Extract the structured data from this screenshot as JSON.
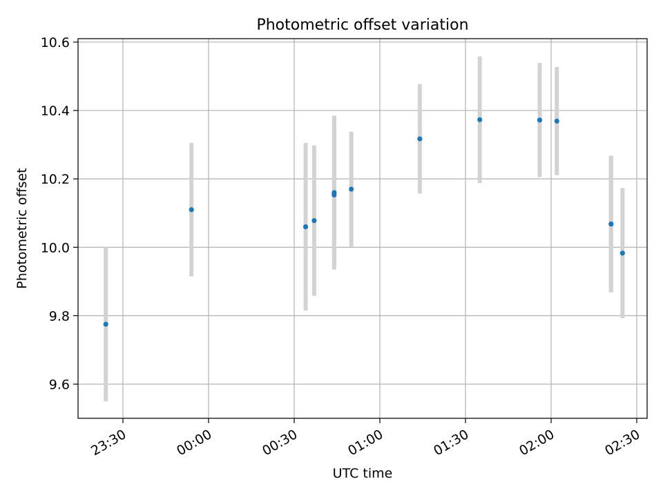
{
  "chart_data": {
    "type": "scatter",
    "title": "Photometric offset variation",
    "xlabel": "UTC time",
    "ylabel": "Photometric offset",
    "x_ticks": [
      "23:30",
      "00:00",
      "00:30",
      "01:00",
      "01:30",
      "02:00",
      "02:30"
    ],
    "x_tick_minutes": [
      -30,
      0,
      30,
      60,
      90,
      120,
      150
    ],
    "y_ticks": [
      "9.6",
      "9.8",
      "10.0",
      "10.2",
      "10.4",
      "10.6"
    ],
    "y_tick_values": [
      9.6,
      9.8,
      10.0,
      10.2,
      10.4,
      10.6
    ],
    "ylim": [
      9.5,
      10.61
    ],
    "grid": true,
    "marker_color": "#1f77b4",
    "errorbar_color": "#d3d3d3",
    "points": [
      {
        "time": "23:24",
        "y": 9.775,
        "err": 0.225
      },
      {
        "time": "23:54",
        "y": 10.11,
        "err": 0.195
      },
      {
        "time": "00:34",
        "y": 10.06,
        "err": 0.245
      },
      {
        "time": "00:37",
        "y": 10.078,
        "err": 0.22
      },
      {
        "time": "00:44",
        "y": 10.16,
        "err": 0.225
      },
      {
        "time": "00:44",
        "y": 10.153,
        "err": 0.21
      },
      {
        "time": "00:50",
        "y": 10.17,
        "err": 0.168
      },
      {
        "time": "01:14",
        "y": 10.317,
        "err": 0.16
      },
      {
        "time": "01:35",
        "y": 10.373,
        "err": 0.185
      },
      {
        "time": "01:56",
        "y": 10.372,
        "err": 0.167
      },
      {
        "time": "02:02",
        "y": 10.369,
        "err": 0.158
      },
      {
        "time": "02:21",
        "y": 10.068,
        "err": 0.198
      },
      {
        "time": "02:21",
        "y": 10.068,
        "err": 0.2
      },
      {
        "time": "02:25",
        "y": 9.983,
        "err": 0.19
      }
    ]
  }
}
